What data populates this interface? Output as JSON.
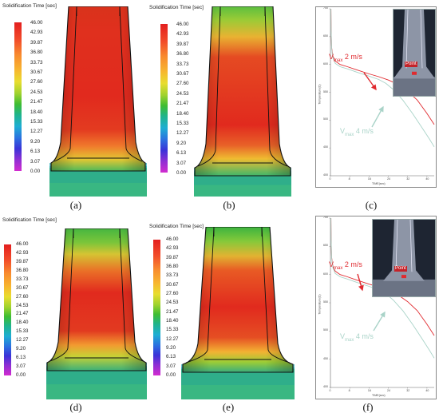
{
  "colorbar": {
    "title": "Solidification Time [sec]",
    "labels": [
      "46.00",
      "42.93",
      "39.87",
      "36.80",
      "33.73",
      "30.67",
      "27.60",
      "24.53",
      "21.47",
      "18.40",
      "15.33",
      "12.27",
      "9.20",
      "6.13",
      "3.07",
      "0.00"
    ]
  },
  "panels": {
    "a": {
      "caption": "(a)",
      "colorbar_title": "Solidification Time [sec]"
    },
    "b": {
      "caption": "(b)",
      "colorbar_title": "Solidification Time [sec]"
    },
    "c": {
      "caption": "(c)"
    },
    "d": {
      "caption": "(d)",
      "colorbar_title": "Solidification Time [sec]"
    },
    "e": {
      "caption": "(e)",
      "colorbar_title": "Solidification Time [sec]"
    },
    "f": {
      "caption": "(f)"
    }
  },
  "temperature_charts": {
    "y_axis_label": "Temperature(C)",
    "x_axis_label": "TIME(sec)",
    "y_ticks": [
      "700",
      "650",
      "600",
      "550",
      "500",
      "450",
      "400"
    ],
    "x_ticks": [
      "0",
      "8",
      "16",
      "24",
      "32",
      "40"
    ],
    "inset_label": "Point",
    "series_2": {
      "prefix": "V",
      "sub": "max",
      "suffix": " 2 m/s",
      "color": "#e02a2f"
    },
    "series_4": {
      "prefix": "V",
      "sub": "max",
      "suffix": " 4 m/s",
      "color": "#a9d3c8"
    }
  }
}
